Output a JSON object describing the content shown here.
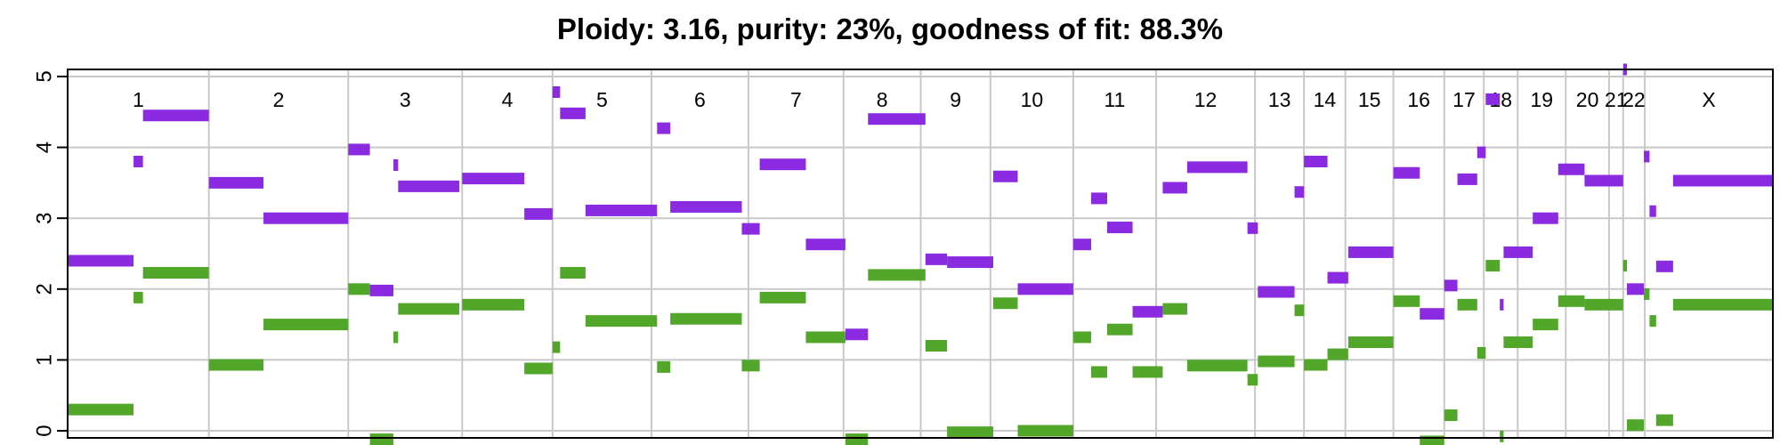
{
  "chart_data": {
    "type": "segment",
    "title": "Ploidy: 3.16, purity: 23%, goodness of fit: 88.3%",
    "xlabel": "",
    "ylabel": "",
    "ylim": [
      -0.1,
      5.1
    ],
    "yticks": [
      0,
      1,
      2,
      3,
      4,
      5
    ],
    "grid": true,
    "colors": {
      "major": "#8a2be2",
      "minor": "#52a629",
      "grid": "#c8c8c8",
      "frame": "#000000"
    },
    "chromosomes": [
      {
        "label": "1",
        "start": 0,
        "end": 150
      },
      {
        "label": "2",
        "start": 150,
        "end": 298
      },
      {
        "label": "3",
        "start": 298,
        "end": 419
      },
      {
        "label": "4",
        "start": 419,
        "end": 515
      },
      {
        "label": "5",
        "start": 515,
        "end": 620
      },
      {
        "label": "6",
        "start": 620,
        "end": 723
      },
      {
        "label": "7",
        "start": 723,
        "end": 824
      },
      {
        "label": "8",
        "start": 824,
        "end": 906
      },
      {
        "label": "9",
        "start": 906,
        "end": 980
      },
      {
        "label": "10",
        "start": 980,
        "end": 1068
      },
      {
        "label": "11",
        "start": 1068,
        "end": 1156
      },
      {
        "label": "12",
        "start": 1156,
        "end": 1261
      },
      {
        "label": "13",
        "start": 1261,
        "end": 1313
      },
      {
        "label": "14",
        "start": 1313,
        "end": 1357
      },
      {
        "label": "15",
        "start": 1357,
        "end": 1408
      },
      {
        "label": "16",
        "start": 1408,
        "end": 1462
      },
      {
        "label": "17",
        "start": 1462,
        "end": 1504
      },
      {
        "label": "18",
        "start": 1504,
        "end": 1540
      },
      {
        "label": "19",
        "start": 1540,
        "end": 1591
      },
      {
        "label": "20",
        "start": 1591,
        "end": 1637
      },
      {
        "label": "21",
        "start": 1637,
        "end": 1652
      },
      {
        "label": "22",
        "start": 1652,
        "end": 1675
      },
      {
        "label": "X",
        "start": 1675,
        "end": 1811
      }
    ],
    "series": [
      {
        "key": "major",
        "segments": [
          [
            0,
            70,
            2.4
          ],
          [
            70,
            80,
            3.8
          ],
          [
            80,
            150,
            4.45
          ],
          [
            150,
            208,
            3.5
          ],
          [
            208,
            298,
            3.0
          ],
          [
            298,
            321,
            3.97
          ],
          [
            321,
            346,
            1.98
          ],
          [
            346,
            351,
            3.75
          ],
          [
            351,
            416,
            3.45
          ],
          [
            419,
            485,
            3.56
          ],
          [
            485,
            515,
            3.06
          ],
          [
            515,
            523,
            4.78
          ],
          [
            523,
            550,
            4.48
          ],
          [
            550,
            626,
            3.11
          ],
          [
            626,
            640,
            4.27
          ],
          [
            640,
            716,
            3.16
          ],
          [
            716,
            735,
            2.85
          ],
          [
            735,
            784,
            3.76
          ],
          [
            784,
            826,
            2.63
          ],
          [
            826,
            850,
            1.36
          ],
          [
            850,
            911,
            4.4
          ],
          [
            911,
            934,
            2.42
          ],
          [
            934,
            983,
            2.38
          ],
          [
            983,
            1009,
            3.59
          ],
          [
            1009,
            1068,
            2.0
          ],
          [
            1068,
            1087,
            2.63
          ],
          [
            1087,
            1104,
            3.28
          ],
          [
            1104,
            1131,
            2.87
          ],
          [
            1131,
            1163,
            1.68
          ],
          [
            1163,
            1189,
            3.43
          ],
          [
            1189,
            1253,
            3.72
          ],
          [
            1253,
            1264,
            2.86
          ],
          [
            1264,
            1303,
            1.96
          ],
          [
            1303,
            1313,
            3.37
          ],
          [
            1313,
            1338,
            3.8
          ],
          [
            1338,
            1360,
            2.16
          ],
          [
            1360,
            1408,
            2.52
          ],
          [
            1408,
            1436,
            3.64
          ],
          [
            1436,
            1462,
            1.65
          ],
          [
            1462,
            1476,
            2.05
          ],
          [
            1476,
            1497,
            3.55
          ],
          [
            1497,
            1506,
            3.93
          ],
          [
            1506,
            1521,
            4.68
          ],
          [
            1521,
            1525,
            1.78
          ],
          [
            1525,
            1556,
            2.52
          ],
          [
            1556,
            1583,
            3.0
          ],
          [
            1583,
            1611,
            3.69
          ],
          [
            1611,
            1652,
            3.53
          ],
          [
            1652,
            1656,
            5.1
          ],
          [
            1656,
            1674,
            2.0
          ],
          [
            1674,
            1680,
            3.87
          ],
          [
            1680,
            1687,
            3.1
          ],
          [
            1687,
            1705,
            2.32
          ],
          [
            1705,
            1811,
            3.53
          ]
        ]
      },
      {
        "key": "minor",
        "segments": [
          [
            0,
            70,
            0.3
          ],
          [
            70,
            80,
            1.88
          ],
          [
            80,
            150,
            2.23
          ],
          [
            150,
            208,
            0.93
          ],
          [
            208,
            298,
            1.5
          ],
          [
            298,
            321,
            2.0
          ],
          [
            321,
            346,
            -0.12
          ],
          [
            346,
            351,
            1.32
          ],
          [
            351,
            416,
            1.72
          ],
          [
            419,
            485,
            1.78
          ],
          [
            485,
            515,
            0.88
          ],
          [
            515,
            523,
            1.18
          ],
          [
            523,
            550,
            2.23
          ],
          [
            550,
            626,
            1.55
          ],
          [
            626,
            640,
            0.9
          ],
          [
            640,
            716,
            1.58
          ],
          [
            716,
            735,
            0.92
          ],
          [
            735,
            784,
            1.88
          ],
          [
            784,
            826,
            1.32
          ],
          [
            826,
            850,
            -0.12
          ],
          [
            850,
            911,
            2.2
          ],
          [
            911,
            934,
            1.2
          ],
          [
            934,
            983,
            -0.02
          ],
          [
            983,
            1009,
            1.8
          ],
          [
            1009,
            1068,
            0.0
          ],
          [
            1068,
            1087,
            1.32
          ],
          [
            1087,
            1104,
            0.83
          ],
          [
            1104,
            1131,
            1.43
          ],
          [
            1131,
            1163,
            0.83
          ],
          [
            1163,
            1189,
            1.72
          ],
          [
            1189,
            1253,
            0.92
          ],
          [
            1253,
            1264,
            0.72
          ],
          [
            1264,
            1303,
            0.98
          ],
          [
            1303,
            1313,
            1.7
          ],
          [
            1313,
            1338,
            0.93
          ],
          [
            1338,
            1360,
            1.08
          ],
          [
            1360,
            1408,
            1.25
          ],
          [
            1408,
            1436,
            1.83
          ],
          [
            1436,
            1462,
            -0.15
          ],
          [
            1462,
            1476,
            0.22
          ],
          [
            1476,
            1497,
            1.78
          ],
          [
            1497,
            1506,
            1.1
          ],
          [
            1506,
            1521,
            2.33
          ],
          [
            1521,
            1525,
            -0.08
          ],
          [
            1525,
            1556,
            1.25
          ],
          [
            1556,
            1583,
            1.5
          ],
          [
            1583,
            1611,
            1.83
          ],
          [
            1611,
            1652,
            1.78
          ],
          [
            1652,
            1656,
            2.33
          ],
          [
            1656,
            1674,
            0.08
          ],
          [
            1674,
            1680,
            1.93
          ],
          [
            1680,
            1687,
            1.55
          ],
          [
            1687,
            1705,
            0.15
          ],
          [
            1705,
            1811,
            1.78
          ]
        ]
      }
    ]
  }
}
